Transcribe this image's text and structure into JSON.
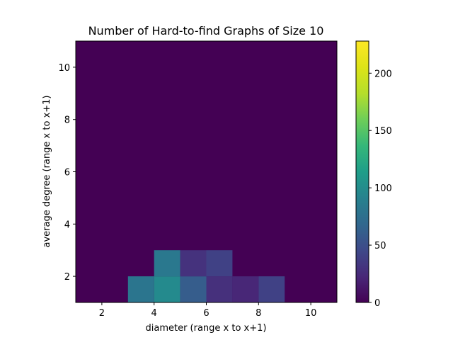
{
  "chart_data": {
    "type": "heatmap",
    "title": "Number of Hard-to-find Graphs of Size 10",
    "xlabel": "diameter (range x to x+1)",
    "ylabel": "average degree (range x to x+1)",
    "xlim": [
      1,
      11
    ],
    "ylim": [
      1,
      11
    ],
    "x_ticks": [
      2,
      4,
      6,
      8,
      10
    ],
    "y_ticks": [
      2,
      4,
      6,
      8,
      10
    ],
    "grid": false,
    "colormap": "viridis",
    "colorbar": {
      "min": 0,
      "max": 228,
      "ticks": [
        0,
        50,
        100,
        150,
        200
      ]
    },
    "cells": [
      {
        "x": 3,
        "y": 1,
        "value": 80
      },
      {
        "x": 4,
        "y": 1,
        "value": 98
      },
      {
        "x": 5,
        "y": 1,
        "value": 60
      },
      {
        "x": 6,
        "y": 1,
        "value": 28
      },
      {
        "x": 7,
        "y": 1,
        "value": 22
      },
      {
        "x": 8,
        "y": 1,
        "value": 40
      },
      {
        "x": 4,
        "y": 2,
        "value": 82
      },
      {
        "x": 5,
        "y": 2,
        "value": 30
      },
      {
        "x": 6,
        "y": 2,
        "value": 40
      }
    ]
  }
}
